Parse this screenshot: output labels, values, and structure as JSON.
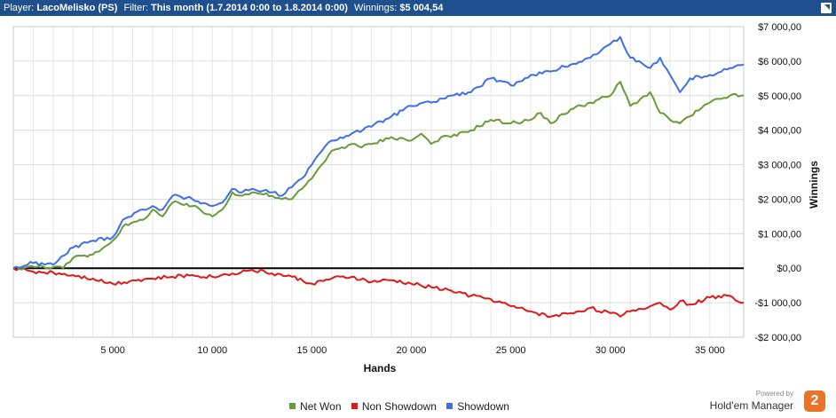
{
  "header": {
    "player_label": "Player:",
    "player_value": "LacoMelisko (PS)",
    "filter_label": "Filter:",
    "filter_value": "This month (1.7.2014 0:00 to 1.8.2014 0:00)",
    "winnings_label": "Winnings:",
    "winnings_value": "$5 004,54"
  },
  "legend": {
    "net_won": "Net Won",
    "non_showdown": "Non Showdown",
    "showdown": "Showdown"
  },
  "branding": {
    "powered_by": "Powered by",
    "product": "Hold'em Manager",
    "logo_text": "2"
  },
  "colors": {
    "net_won": "#6a9a3a",
    "non_showdown": "#e01a1a",
    "showdown": "#3f6fe8",
    "header_bg": "#1f4f8c"
  },
  "chart_data": {
    "type": "line",
    "xlabel": "Hands",
    "ylabel": "Winnings",
    "xlim": [
      0,
      36700
    ],
    "ylim": [
      -2000,
      7000
    ],
    "x_ticks": [
      5000,
      10000,
      15000,
      20000,
      25000,
      30000,
      35000
    ],
    "x_tick_labels": [
      "5 000",
      "10 000",
      "15 000",
      "20 000",
      "25 000",
      "30 000",
      "35 000"
    ],
    "y_ticks": [
      -2000,
      -1000,
      0,
      1000,
      2000,
      3000,
      4000,
      5000,
      6000,
      7000
    ],
    "y_tick_labels": [
      "-$2 000,00",
      "-$1 000,00",
      "$0,00",
      "$1 000,00",
      "$2 000,00",
      "$3 000,00",
      "$4 000,00",
      "$5 000,00",
      "$6 000,00",
      "$7 000,00"
    ],
    "grid": true,
    "legend_position": "bottom",
    "series": [
      {
        "name": "Net Won",
        "x": [
          0,
          1500,
          2500,
          3000,
          4000,
          5000,
          5500,
          6500,
          7000,
          7500,
          8000,
          9000,
          10000,
          10500,
          11000,
          11500,
          12000,
          13000,
          13500,
          14000,
          14500,
          15000,
          15500,
          16000,
          16500,
          17000,
          17500,
          18000,
          19000,
          20000,
          20500,
          21000,
          21500,
          22000,
          23000,
          24000,
          25000,
          26000,
          26500,
          27000,
          28000,
          29000,
          30000,
          30500,
          31000,
          31500,
          32000,
          32500,
          33000,
          33500,
          34000,
          35000,
          36000,
          36700
        ],
        "values": [
          0,
          50,
          0,
          300,
          400,
          800,
          1200,
          1400,
          1700,
          1500,
          1900,
          1800,
          1500,
          1700,
          2200,
          2100,
          2200,
          2100,
          2000,
          2000,
          2300,
          2600,
          3000,
          3400,
          3500,
          3600,
          3500,
          3600,
          3800,
          3700,
          3900,
          3600,
          3800,
          3800,
          4000,
          4300,
          4200,
          4300,
          4500,
          4200,
          4600,
          4800,
          5000,
          5400,
          4700,
          4900,
          5100,
          4500,
          4300,
          4200,
          4400,
          4800,
          5000,
          5000
        ]
      },
      {
        "name": "Non Showdown",
        "x": [
          0,
          1000,
          2000,
          3000,
          4000,
          5000,
          6000,
          7000,
          8000,
          9000,
          10000,
          11000,
          12000,
          13000,
          14000,
          15000,
          16000,
          17000,
          18000,
          19000,
          20000,
          21000,
          22000,
          23000,
          24000,
          25000,
          26000,
          27000,
          28000,
          29000,
          30000,
          30500,
          31000,
          32000,
          32500,
          33000,
          33500,
          34000,
          35000,
          36000,
          36700
        ],
        "values": [
          0,
          -100,
          -120,
          -200,
          -300,
          -450,
          -350,
          -300,
          -250,
          -200,
          -250,
          -150,
          -50,
          -150,
          -250,
          -450,
          -300,
          -250,
          -400,
          -350,
          -450,
          -550,
          -650,
          -800,
          -900,
          -1100,
          -1250,
          -1400,
          -1300,
          -1150,
          -1300,
          -1400,
          -1250,
          -1100,
          -1000,
          -1200,
          -950,
          -1050,
          -850,
          -800,
          -1000
        ]
      },
      {
        "name": "Showdown",
        "x": [
          0,
          1000,
          2000,
          3000,
          4000,
          5000,
          5500,
          6500,
          7000,
          7500,
          8000,
          9000,
          10000,
          10500,
          11000,
          11500,
          12000,
          13000,
          13500,
          14000,
          14500,
          15000,
          15500,
          16000,
          17000,
          18000,
          19000,
          20000,
          21000,
          22000,
          23000,
          24000,
          25000,
          26000,
          27000,
          28000,
          29000,
          30000,
          30500,
          31000,
          32000,
          32500,
          33000,
          33500,
          34000,
          35000,
          36000,
          36700
        ],
        "values": [
          0,
          150,
          100,
          600,
          800,
          900,
          1400,
          1700,
          1800,
          1700,
          2100,
          2000,
          1800,
          1900,
          2300,
          2200,
          2300,
          2200,
          2100,
          2350,
          2600,
          3000,
          3400,
          3700,
          3900,
          4100,
          4400,
          4700,
          4800,
          5000,
          5100,
          5500,
          5300,
          5600,
          5700,
          5900,
          6100,
          6500,
          6700,
          6100,
          5800,
          6100,
          5600,
          5100,
          5500,
          5600,
          5800,
          5900
        ]
      }
    ]
  }
}
